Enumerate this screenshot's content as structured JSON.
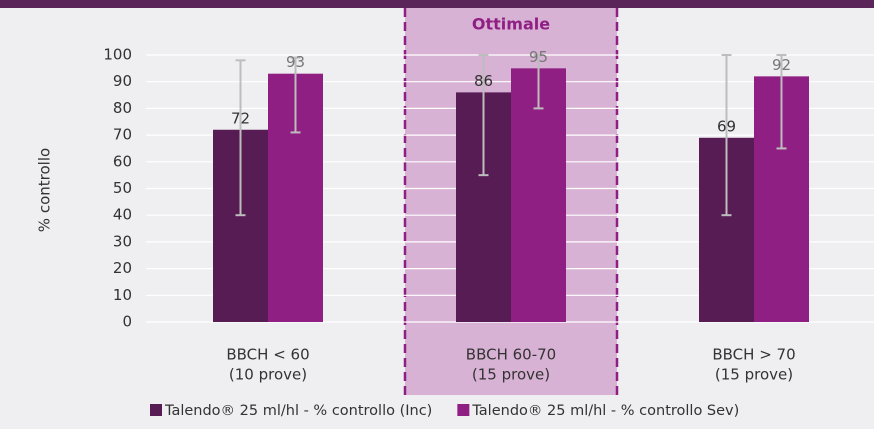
{
  "chart_data": {
    "type": "bar",
    "y_label": "% controllo",
    "highlight": {
      "label": "Ottimale",
      "category": 1
    },
    "categories": [
      "BBCH < 60",
      "BBCH 60-70",
      "BBCH > 70"
    ],
    "subcategories": [
      "(10 prove)",
      "(15 prove)",
      "(15 prove)"
    ],
    "series": [
      {
        "name": "Talendo® 25 ml/hl - % controllo (Inc)",
        "color": "#581c54",
        "label_color": "#333333",
        "values": [
          72,
          86,
          69
        ],
        "error_minus": [
          32,
          31,
          29
        ],
        "error_plus": [
          26,
          14,
          31
        ]
      },
      {
        "name": "Talendo® 25 ml/hl - % controllo Sev)",
        "color": "#8f1f83",
        "label_color": "#777777",
        "values": [
          93,
          95,
          92
        ],
        "error_minus": [
          22,
          15,
          27
        ],
        "error_plus": [
          6,
          5,
          8
        ]
      }
    ],
    "ylim": [
      0,
      100
    ],
    "yticks": [
      0,
      10,
      20,
      30,
      40,
      50,
      60,
      70,
      80,
      90,
      100
    ],
    "grid": true
  }
}
